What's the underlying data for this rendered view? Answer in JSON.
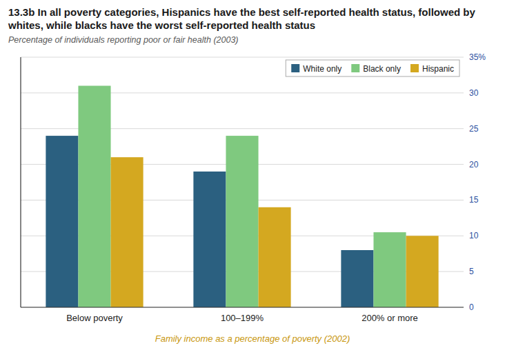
{
  "chart_data": {
    "type": "bar",
    "title": "13.3b In all poverty categories, Hispanics have the best self-reported health status, followed by whites, while blacks have the worst self-reported health status",
    "subtitle": "Percentage of individuals reporting poor or fair health (2003)",
    "x_label": "Family income as a percentage of poverty (2002)",
    "categories": [
      "Below poverty",
      "100–199%",
      "200% or more"
    ],
    "series": [
      {
        "name": "White only",
        "color": "#2b6080",
        "values": [
          24,
          19,
          8
        ]
      },
      {
        "name": "Black only",
        "color": "#7fc97f",
        "values": [
          31,
          24,
          10.5
        ]
      },
      {
        "name": "Hispanic",
        "color": "#d4a820",
        "values": [
          21,
          14,
          10
        ]
      }
    ],
    "ylim": [
      0,
      35
    ],
    "yticks": [
      0,
      5,
      10,
      15,
      20,
      25,
      30,
      {
        "value": 35,
        "label": "35%"
      }
    ],
    "grid": true,
    "legend": "upper right"
  }
}
